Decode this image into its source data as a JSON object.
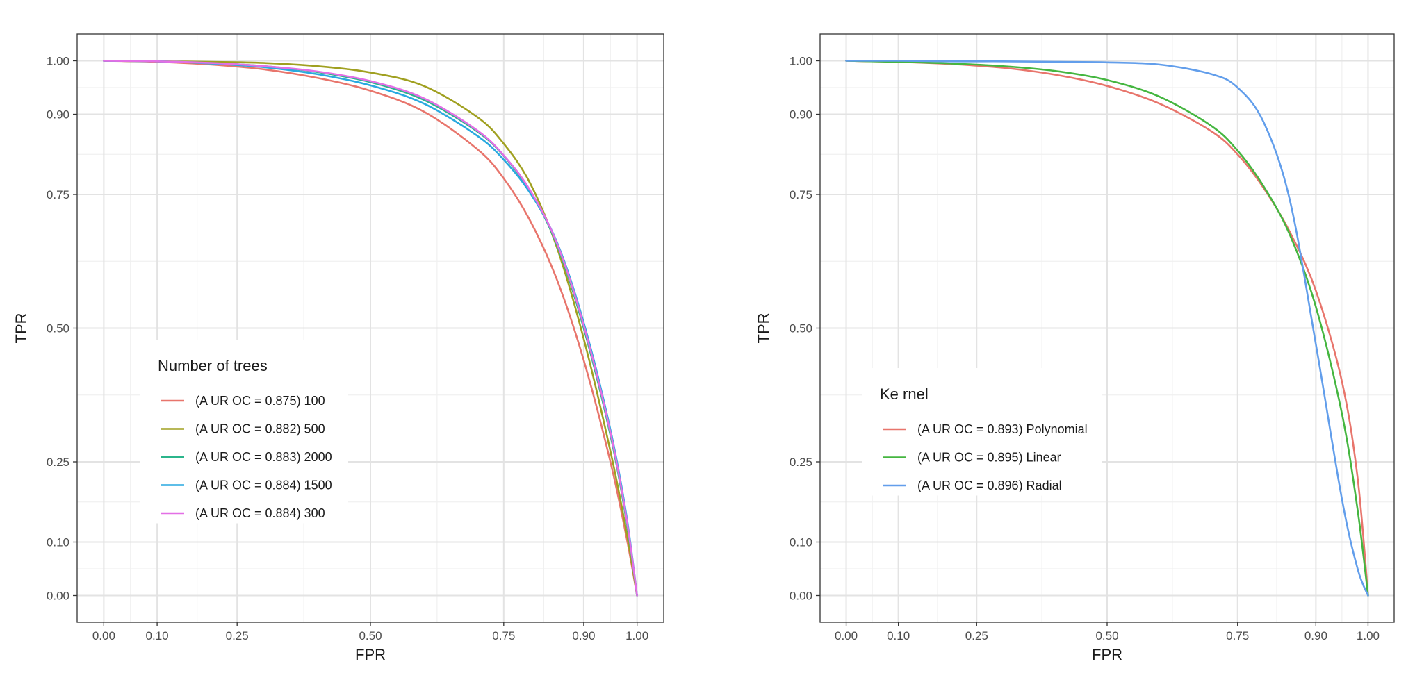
{
  "chart_data": [
    {
      "type": "line",
      "xlabel": "FPR",
      "ylabel": "TPR",
      "xlim": [
        -0.05,
        1.05
      ],
      "ylim": [
        -0.05,
        1.05
      ],
      "x_ticks": [
        0.0,
        0.1,
        0.25,
        0.5,
        0.75,
        0.9,
        1.0
      ],
      "x_tick_labels": [
        "0.00",
        "0.10",
        "0.25",
        "0.50",
        "0.75",
        "0.90",
        "1.00"
      ],
      "y_ticks": [
        0.0,
        0.1,
        0.25,
        0.5,
        0.75,
        0.9,
        1.0
      ],
      "y_tick_labels": [
        "0.00",
        "0.10",
        "0.25",
        "0.50",
        "0.75",
        "0.90",
        "1.00"
      ],
      "grid": true,
      "legend": {
        "title": "Number of trees",
        "placement": "lower-left",
        "entries": [
          "(A UR OC = 0.875) 100",
          "(A UR OC = 0.882) 500",
          "(A UR OC = 0.883) 2000",
          "(A UR OC = 0.884) 1500",
          "(A UR OC = 0.884) 300"
        ]
      },
      "series": [
        {
          "name": "(A UR OC = 0.875) 100",
          "color": "#E8756C",
          "x": [
            0.0,
            0.1,
            0.2,
            0.3,
            0.4,
            0.5,
            0.6,
            0.7,
            0.75,
            0.8,
            0.85,
            0.9,
            0.95,
            0.98,
            1.0
          ],
          "y": [
            1.0,
            0.998,
            0.993,
            0.984,
            0.968,
            0.944,
            0.905,
            0.835,
            0.78,
            0.7,
            0.59,
            0.44,
            0.25,
            0.11,
            0.0
          ]
        },
        {
          "name": "(A UR OC = 0.882) 500",
          "color": "#A0A020",
          "x": [
            0.0,
            0.1,
            0.2,
            0.3,
            0.4,
            0.5,
            0.6,
            0.7,
            0.75,
            0.8,
            0.85,
            0.9,
            0.95,
            0.98,
            1.0
          ],
          "y": [
            1.0,
            0.999,
            0.998,
            0.996,
            0.99,
            0.978,
            0.953,
            0.895,
            0.845,
            0.77,
            0.65,
            0.48,
            0.27,
            0.12,
            0.0
          ]
        },
        {
          "name": "(A UR OC = 0.883) 2000",
          "color": "#2BB58B",
          "x": [
            0.0,
            0.1,
            0.2,
            0.3,
            0.4,
            0.5,
            0.6,
            0.7,
            0.75,
            0.8,
            0.85,
            0.9,
            0.95,
            0.98,
            1.0
          ],
          "y": [
            1.0,
            0.999,
            0.996,
            0.99,
            0.979,
            0.96,
            0.927,
            0.868,
            0.822,
            0.755,
            0.655,
            0.5,
            0.3,
            0.14,
            0.0
          ]
        },
        {
          "name": "(A UR OC = 0.884) 1500",
          "color": "#29A9E0",
          "x": [
            0.0,
            0.1,
            0.2,
            0.3,
            0.4,
            0.5,
            0.6,
            0.7,
            0.75,
            0.8,
            0.85,
            0.9,
            0.95,
            0.98,
            1.0
          ],
          "y": [
            1.0,
            0.999,
            0.995,
            0.988,
            0.975,
            0.954,
            0.92,
            0.86,
            0.815,
            0.752,
            0.66,
            0.51,
            0.31,
            0.15,
            0.0
          ]
        },
        {
          "name": "(A UR OC = 0.884) 300",
          "color": "#E36FE6",
          "x": [
            0.0,
            0.1,
            0.2,
            0.3,
            0.4,
            0.5,
            0.6,
            0.7,
            0.75,
            0.8,
            0.85,
            0.9,
            0.95,
            0.98,
            1.0
          ],
          "y": [
            1.0,
            0.999,
            0.996,
            0.99,
            0.98,
            0.962,
            0.93,
            0.87,
            0.823,
            0.757,
            0.658,
            0.505,
            0.305,
            0.145,
            0.0
          ]
        }
      ]
    },
    {
      "type": "line",
      "xlabel": "FPR",
      "ylabel": "TPR",
      "xlim": [
        -0.05,
        1.05
      ],
      "ylim": [
        -0.05,
        1.05
      ],
      "x_ticks": [
        0.0,
        0.1,
        0.25,
        0.5,
        0.75,
        0.9,
        1.0
      ],
      "x_tick_labels": [
        "0.00",
        "0.10",
        "0.25",
        "0.50",
        "0.75",
        "0.90",
        "1.00"
      ],
      "y_ticks": [
        0.0,
        0.1,
        0.25,
        0.5,
        0.75,
        0.9,
        1.0
      ],
      "y_tick_labels": [
        "0.00",
        "0.10",
        "0.25",
        "0.50",
        "0.75",
        "0.90",
        "1.00"
      ],
      "grid": true,
      "legend": {
        "title": "Ke rnel",
        "placement": "lower-left",
        "entries": [
          "(A UR OC = 0.893)  Polynomial",
          "(A UR OC = 0.895) Linear",
          "(A UR OC = 0.896) Radial"
        ]
      },
      "series": [
        {
          "name": "(A UR OC = 0.893)  Polynomial",
          "color": "#E8756C",
          "x": [
            0.0,
            0.1,
            0.2,
            0.3,
            0.4,
            0.5,
            0.6,
            0.7,
            0.75,
            0.8,
            0.85,
            0.9,
            0.95,
            0.98,
            1.0
          ],
          "y": [
            1.0,
            0.998,
            0.994,
            0.987,
            0.974,
            0.953,
            0.92,
            0.868,
            0.825,
            0.762,
            0.68,
            0.57,
            0.4,
            0.22,
            0.0
          ]
        },
        {
          "name": "(A UR OC = 0.895) Linear",
          "color": "#45B640",
          "x": [
            0.0,
            0.1,
            0.2,
            0.3,
            0.4,
            0.5,
            0.6,
            0.7,
            0.75,
            0.8,
            0.85,
            0.9,
            0.95,
            0.98,
            1.0
          ],
          "y": [
            1.0,
            0.998,
            0.995,
            0.99,
            0.981,
            0.964,
            0.933,
            0.878,
            0.832,
            0.765,
            0.675,
            0.54,
            0.34,
            0.16,
            0.0
          ]
        },
        {
          "name": "(A UR OC = 0.896) Radial",
          "color": "#629EEB",
          "x": [
            0.0,
            0.1,
            0.2,
            0.3,
            0.4,
            0.5,
            0.6,
            0.7,
            0.75,
            0.8,
            0.85,
            0.9,
            0.95,
            0.98,
            1.0
          ],
          "y": [
            1.0,
            1.0,
            0.999,
            0.999,
            0.998,
            0.997,
            0.993,
            0.975,
            0.95,
            0.885,
            0.74,
            0.47,
            0.18,
            0.05,
            0.0
          ]
        }
      ]
    }
  ]
}
